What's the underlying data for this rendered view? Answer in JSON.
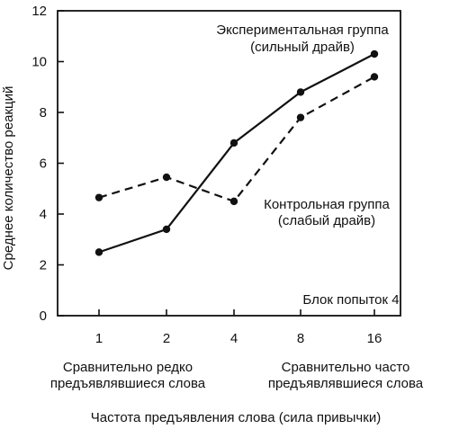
{
  "chart_data": {
    "type": "line",
    "categories": [
      "1",
      "2",
      "4",
      "8",
      "16"
    ],
    "series": [
      {
        "values": [
          2.5,
          3.4,
          6.8,
          8.8,
          10.3
        ],
        "color": "#111111",
        "dash": "solid"
      },
      {
        "values": [
          4.65,
          5.45,
          4.5,
          7.8,
          9.4
        ],
        "color": "#111111",
        "dash": "dashed"
      }
    ],
    "ylabel": "Среднее количество реакций",
    "xlabel": "Частота предъявления слова (сила привычки)",
    "ylim": [
      0,
      12
    ],
    "yticks": [
      "0",
      "2",
      "4",
      "6",
      "8",
      "10",
      "12"
    ],
    "grid": false,
    "annotations": {
      "experimental_line1": "Экспериментальная группа",
      "experimental_line2": "(сильный драйв)",
      "control_line1": "Контрольная группа",
      "control_line2": "(слабый драйв)",
      "block": "Блок попыток 4",
      "left_caption_line1": "Сравнительно редко",
      "left_caption_line2": "предъявлявшиеся слова",
      "right_caption_line1": "Сравнительно часто",
      "right_caption_line2": "предъявлявшиеся слова"
    }
  }
}
